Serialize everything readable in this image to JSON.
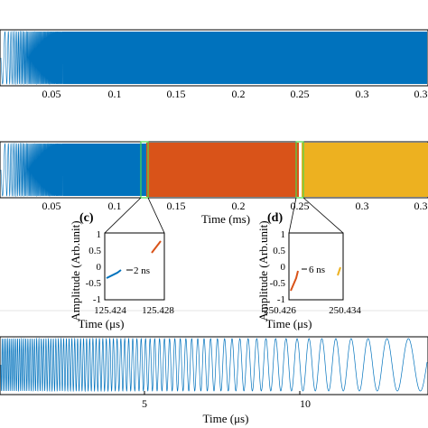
{
  "chart_data": [
    {
      "id": "top",
      "type": "line",
      "description_visible": "dense chirp waveform",
      "x_ticks": [
        "0.05",
        "0.1",
        "0.15",
        "0.2",
        "0.25",
        "0.3",
        "0.3"
      ],
      "xlim": [
        0,
        0.32
      ],
      "color": "#0072BD"
    },
    {
      "id": "middle",
      "type": "line",
      "x_ticks": [
        "0.05",
        "0.1",
        "0.15",
        "0.2",
        "0.25",
        "0.3",
        "0.3"
      ],
      "xlabel": "Time (ms)",
      "xlim": [
        0,
        0.32
      ],
      "series": [
        {
          "x_range": [
            0,
            0.125
          ],
          "color": "#0072BD"
        },
        {
          "x_range": [
            0.125,
            0.25
          ],
          "color": "#D95319"
        },
        {
          "x_range": [
            0.25,
            0.32
          ],
          "color": "#EDB120"
        }
      ],
      "markers": [
        0.125,
        0.25
      ]
    },
    {
      "id": "inset-c",
      "type": "line",
      "panel_label": "(c)",
      "ylabel": "Amplitude (Arb.unit)",
      "xlabel": "Time (μs)",
      "y_ticks": [
        "1",
        "0.5",
        "0",
        "-0.5",
        "-1"
      ],
      "x_ticks": [
        "125.424",
        "125.428"
      ],
      "gap_label": "2 ns"
    },
    {
      "id": "inset-d",
      "type": "line",
      "panel_label": "(d)",
      "ylabel": "Amplitude (Arb.unit)",
      "xlabel": "Time (μs)",
      "y_ticks": [
        "1",
        "0.5",
        "0",
        "-0.5",
        "-1"
      ],
      "x_ticks": [
        "250.426",
        "250.434"
      ],
      "gap_label": "6 ns"
    },
    {
      "id": "bottom",
      "type": "line",
      "x_ticks": [
        "5",
        "10"
      ],
      "xlabel": "Time (μs)",
      "xlim": [
        0,
        13.5
      ],
      "color": "#0072BD"
    }
  ]
}
